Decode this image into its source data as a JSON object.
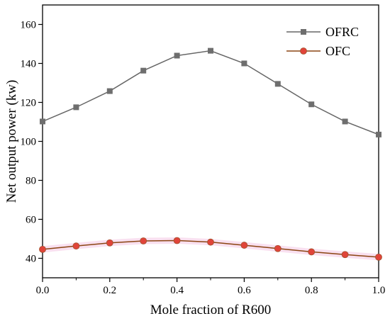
{
  "chart_data": {
    "type": "line",
    "xlabel": "Mole fraction of R600",
    "ylabel": "Net output power (kw)",
    "xlim": [
      0.0,
      1.0
    ],
    "ylim": [
      30,
      170
    ],
    "x_ticks": [
      0.0,
      0.2,
      0.4,
      0.6,
      0.8,
      1.0
    ],
    "x_tick_labels": [
      "0.0",
      "0.2",
      "0.4",
      "0.6",
      "0.8",
      "1.0"
    ],
    "y_ticks": [
      40,
      60,
      80,
      100,
      120,
      140,
      160
    ],
    "y_tick_labels": [
      "40",
      "60",
      "80",
      "100",
      "120",
      "140",
      "160"
    ],
    "x": [
      0.0,
      0.1,
      0.2,
      0.3,
      0.4,
      0.5,
      0.6,
      0.7,
      0.8,
      0.9,
      1.0
    ],
    "series": [
      {
        "name": "OFRC",
        "values": [
          110.2,
          117.5,
          125.8,
          136.3,
          144.0,
          146.5,
          140.0,
          129.5,
          119.0,
          110.2,
          103.5
        ],
        "line_color": "#666666",
        "marker": "square",
        "marker_color": "#6e6e6e"
      },
      {
        "name": "OFC",
        "values": [
          44.6,
          46.3,
          47.9,
          48.9,
          49.1,
          48.3,
          46.7,
          45.0,
          43.3,
          41.9,
          40.6
        ],
        "line_color": "#8b4513",
        "marker": "circle",
        "marker_color": "#e0443a"
      }
    ],
    "legend_position": "top-right",
    "grid": false
  }
}
